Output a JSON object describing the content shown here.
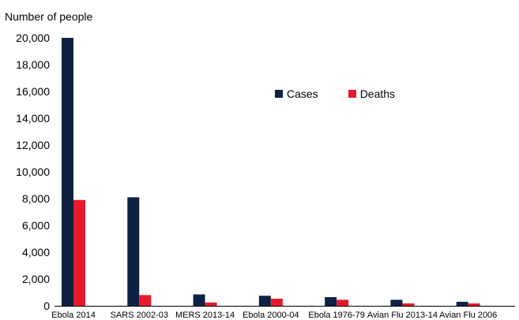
{
  "chart_data": {
    "type": "bar",
    "ylabel": "Number of people",
    "xlabel": "",
    "categories": [
      "Ebola 2014",
      "SARS 2002-03",
      "MERS 2013-14",
      "Ebola 2000-04",
      "Ebola 1976-79",
      "Avian Flu 2013-14",
      "Avian Flu 2006"
    ],
    "series": [
      {
        "name": "Cases",
        "color": "#0f2244",
        "values": [
          20000,
          8100,
          850,
          750,
          650,
          450,
          300
        ]
      },
      {
        "name": "Deaths",
        "color": "#e8192c",
        "values": [
          7900,
          800,
          250,
          530,
          450,
          180,
          180
        ]
      }
    ],
    "ylim": [
      0,
      20000
    ],
    "yticks": [
      "0",
      "2,000",
      "4,000",
      "6,000",
      "8,000",
      "10,000",
      "12,000",
      "14,000",
      "16,000",
      "18,000",
      "20,000"
    ],
    "ytick_values": [
      0,
      2000,
      4000,
      6000,
      8000,
      10000,
      12000,
      14000,
      16000,
      18000,
      20000
    ],
    "grid": false,
    "legend_position": "top-center"
  }
}
